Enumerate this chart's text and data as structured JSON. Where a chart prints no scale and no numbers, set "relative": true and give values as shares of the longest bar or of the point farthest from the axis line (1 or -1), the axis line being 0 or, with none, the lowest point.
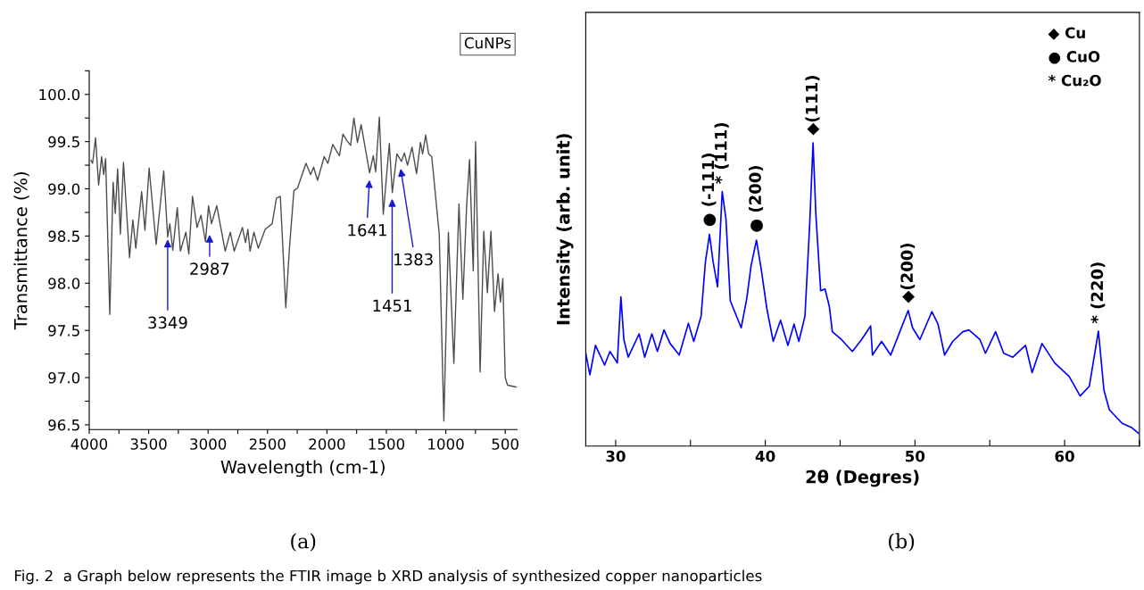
{
  "chart_data": [
    {
      "type": "line",
      "xlabel": "Wavelength (cm-1)",
      "ylabel": "Transmittance (%)",
      "color": "#4d4d4d",
      "x": [
        3985,
        3972,
        3947,
        3921,
        3896,
        3878,
        3862,
        3827,
        3799,
        3781,
        3761,
        3738,
        3712,
        3661,
        3633,
        3608,
        3559,
        3531,
        3496,
        3437,
        3373,
        3340,
        3322,
        3297,
        3259,
        3233,
        3187,
        3162,
        3131,
        3093,
        3060,
        3022,
        2996,
        2971,
        2927,
        2856,
        2813,
        2780,
        2711,
        2685,
        2665,
        2647,
        2614,
        2578,
        2520,
        2461,
        2425,
        2392,
        2346,
        2316,
        2278,
        2247,
        2176,
        2137,
        2112,
        2079,
        2023,
        1992,
        1951,
        1895,
        1865,
        1832,
        1801,
        1773,
        1743,
        1712,
        1679,
        1641,
        1610,
        1590,
        1559,
        1526,
        1475,
        1450,
        1411,
        1373,
        1348,
        1322,
        1284,
        1246,
        1213,
        1195,
        1169,
        1144,
        1118,
        1055,
        1016,
        978,
        932,
        889,
        856,
        825,
        800,
        769,
        749,
        711,
        680,
        650,
        620,
        590,
        560,
        540,
        520,
        500,
        480,
        410
      ],
      "values": [
        99.3,
        99.27,
        99.54,
        99.04,
        99.34,
        99.15,
        99.32,
        97.67,
        99.07,
        98.74,
        99.21,
        98.52,
        99.28,
        98.27,
        98.67,
        98.37,
        98.97,
        98.56,
        99.22,
        98.41,
        99.19,
        98.49,
        98.63,
        98.35,
        98.8,
        98.34,
        98.54,
        98.31,
        98.92,
        98.59,
        98.72,
        98.44,
        98.82,
        98.63,
        98.82,
        98.34,
        98.54,
        98.34,
        98.59,
        98.43,
        98.57,
        98.34,
        98.54,
        98.37,
        98.57,
        98.63,
        98.9,
        98.92,
        97.74,
        98.36,
        98.98,
        99.01,
        99.27,
        99.15,
        99.23,
        99.09,
        99.34,
        99.27,
        99.47,
        99.35,
        99.58,
        99.51,
        99.46,
        99.75,
        99.49,
        99.68,
        99.44,
        99.17,
        99.35,
        99.18,
        99.76,
        98.73,
        99.48,
        98.96,
        99.37,
        99.29,
        99.38,
        99.25,
        99.44,
        99.16,
        99.49,
        99.37,
        99.57,
        99.37,
        99.34,
        98.52,
        96.54,
        98.54,
        97.15,
        98.84,
        97.83,
        98.81,
        99.31,
        98.13,
        99.5,
        97.06,
        98.55,
        97.9,
        98.55,
        97.7,
        98.1,
        97.8,
        98.05,
        97.0,
        96.92,
        96.9
      ],
      "xlim": [
        4000,
        400
      ],
      "ylim": [
        96.45,
        100.25
      ],
      "xticks": [
        4000,
        {
          "value": 3750,
          "label": null
        },
        3500,
        {
          "value": 3250,
          "label": null
        },
        3000,
        {
          "value": 2750,
          "label": null
        },
        2500,
        {
          "value": 2250,
          "label": null
        },
        2000,
        {
          "value": 1750,
          "label": null
        },
        1500,
        {
          "value": 1250,
          "label": null
        },
        1000,
        {
          "value": 750,
          "label": null
        },
        500
      ],
      "yticks": [
        96.5,
        {
          "value": 96.75,
          "label": null
        },
        {
          "value": 97,
          "label": "97.0"
        },
        {
          "value": 97.25,
          "label": null
        },
        97.5,
        {
          "value": 97.75,
          "label": null
        },
        {
          "value": 98,
          "label": "98.0"
        },
        {
          "value": 98.25,
          "label": null
        },
        98.5,
        {
          "value": 98.75,
          "label": null
        },
        {
          "value": 99,
          "label": "99.0"
        },
        {
          "value": 99.25,
          "label": null
        },
        99.5,
        {
          "value": 99.75,
          "label": null
        },
        {
          "value": 100,
          "label": "100.0"
        },
        {
          "value": 100.25,
          "label": null
        }
      ],
      "annotations": [
        {
          "text": "3349",
          "x": 3340,
          "y": 98.49
        },
        {
          "text": "2987",
          "x": 2987,
          "y": 98.54
        },
        {
          "text": "1641",
          "x": 1641,
          "y": 99.12
        },
        {
          "text": "1451",
          "x": 1451,
          "y": 98.92
        },
        {
          "text": "1383",
          "x": 1383,
          "y": 99.24
        },
        "CuNPs",
        "(a)",
        "Fig. 2  a Graph below represents the FTIR image b XRD analysis of synthesized copper nanoparticles"
      ]
    },
    {
      "type": "line",
      "relative": true,
      "xlabel": "2θ (Degres)",
      "ylabel": "Intensity (arb. unit)",
      "color": "#0000ff",
      "tick_labels": "x",
      "x": [
        28.0,
        28.28,
        28.65,
        29.26,
        29.62,
        30.11,
        30.35,
        30.55,
        30.84,
        31.57,
        31.94,
        32.42,
        32.79,
        33.23,
        33.64,
        34.25,
        34.86,
        35.22,
        35.71,
        36.0,
        36.27,
        36.51,
        36.81,
        37.12,
        37.37,
        37.66,
        38.39,
        38.76,
        39.05,
        39.41,
        39.73,
        40.1,
        40.53,
        41.02,
        41.51,
        41.92,
        42.24,
        42.65,
        42.97,
        43.19,
        43.38,
        43.7,
        43.99,
        44.28,
        44.48,
        45.09,
        45.82,
        46.43,
        47.04,
        47.16,
        47.77,
        48.38,
        48.99,
        49.55,
        49.84,
        50.33,
        51.13,
        51.54,
        51.98,
        52.52,
        53.2,
        53.61,
        54.34,
        54.71,
        55.39,
        55.93,
        56.54,
        57.39,
        57.83,
        58.49,
        59.34,
        60.31,
        61.04,
        61.65,
        62.26,
        62.63,
        62.99,
        63.84,
        64.45,
        64.94
      ],
      "values": [
        0.306,
        0.235,
        0.332,
        0.267,
        0.312,
        0.274,
        0.492,
        0.351,
        0.293,
        0.37,
        0.293,
        0.37,
        0.312,
        0.383,
        0.338,
        0.3,
        0.405,
        0.345,
        0.428,
        0.608,
        0.698,
        0.608,
        0.525,
        0.839,
        0.749,
        0.479,
        0.39,
        0.486,
        0.595,
        0.679,
        0.582,
        0.454,
        0.345,
        0.415,
        0.332,
        0.402,
        0.345,
        0.428,
        0.736,
        1.0,
        0.762,
        0.512,
        0.518,
        0.46,
        0.377,
        0.351,
        0.312,
        0.351,
        0.396,
        0.3,
        0.345,
        0.3,
        0.377,
        0.447,
        0.39,
        0.351,
        0.443,
        0.402,
        0.3,
        0.345,
        0.377,
        0.383,
        0.351,
        0.306,
        0.377,
        0.306,
        0.293,
        0.332,
        0.242,
        0.338,
        0.274,
        0.229,
        0.165,
        0.197,
        0.379,
        0.184,
        0.12,
        0.075,
        0.062,
        0.042
      ],
      "xlim": [
        28,
        65
      ],
      "xticks": [
        30,
        {
          "value": 35,
          "label": null
        },
        40,
        {
          "value": 45,
          "label": null
        },
        50,
        {
          "value": 55,
          "label": null
        },
        60,
        {
          "value": 65,
          "label": null
        }
      ],
      "annotations": [
        {
          "text": "● (-111)",
          "x": 36.27,
          "y": 0.698
        },
        {
          "text": "* (111)",
          "x": 37.12,
          "y": 0.839
        },
        {
          "text": "● (200)",
          "x": 39.41,
          "y": 0.679
        },
        {
          "text": "◆(111)",
          "x": 43.19,
          "y": 1.0
        },
        {
          "text": "◆(200)",
          "x": 49.55,
          "y": 0.447
        },
        {
          "text": "* (220)",
          "x": 62.26,
          "y": 0.379
        },
        "◆ Cu",
        "● CuO",
        "* Cu₂O",
        "(b)"
      ]
    }
  ]
}
